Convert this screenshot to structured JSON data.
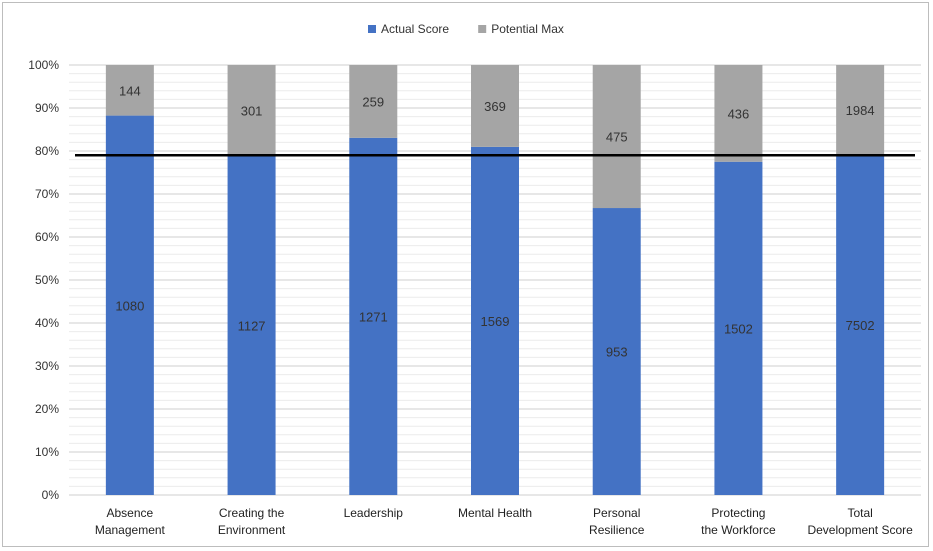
{
  "chart_data": {
    "type": "bar",
    "stacked": "percent",
    "categories": [
      "Absence Management",
      "Creating the Environment",
      "Leadership",
      "Mental Health",
      "Personal Resilience",
      "Protecting the Workforce",
      "Total Development Score"
    ],
    "series": [
      {
        "name": "Actual Score",
        "color": "#4472C4",
        "values": [
          1080,
          1127,
          1271,
          1569,
          953,
          1502,
          7502
        ]
      },
      {
        "name": "Potential Max",
        "color": "#A5A5A5",
        "values": [
          144,
          301,
          259,
          369,
          475,
          436,
          1984
        ]
      }
    ],
    "y_ticks": [
      "0%",
      "10%",
      "20%",
      "30%",
      "40%",
      "50%",
      "60%",
      "70%",
      "80%",
      "90%",
      "100%"
    ],
    "ylim": [
      0,
      100
    ],
    "reference_line": 79,
    "legend_position": "top-center",
    "grid": true
  }
}
